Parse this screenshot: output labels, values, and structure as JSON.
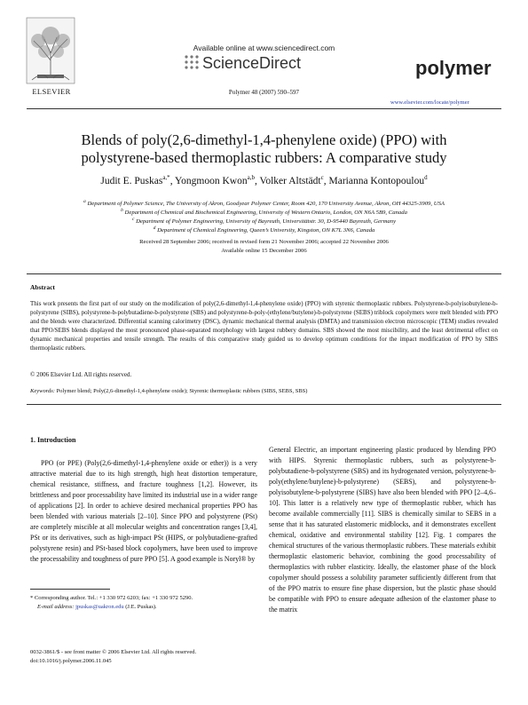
{
  "header": {
    "publisher_logo_text": "ELSEVIER",
    "available_online": "Available online at www.sciencedirect.com",
    "sciencedirect_brand": "ScienceDirect",
    "journal_ref": "Polymer 48 (2007) 590–597",
    "journal_name": "polymer",
    "journal_url": "www.elsevier.com/locate/polymer"
  },
  "article": {
    "title_line1": "Blends of poly(2,6-dimethyl-1,4-phenylene oxide) (PPO) with",
    "title_line2": "polystyrene-based thermoplastic rubbers: A comparative study",
    "authors": [
      {
        "name": "Judit E. Puskas",
        "sup": "a,*"
      },
      {
        "name": "Yongmoon Kwon",
        "sup": "a,b"
      },
      {
        "name": "Volker Altstädt",
        "sup": "c"
      },
      {
        "name": "Marianna Kontopoulou",
        "sup": "d"
      }
    ],
    "affiliations": [
      {
        "sup": "a",
        "text": "Department of Polymer Science, The University of Akron, Goodyear Polymer Center, Room 420, 170 University Avenue, Akron, OH 44325-3909, USA"
      },
      {
        "sup": "b",
        "text": "Department of Chemical and Biochemical Engineering, University of Western Ontario, London, ON N6A 5B9, Canada"
      },
      {
        "sup": "c",
        "text": "Department of Polymer Engineering, University of Bayreuth, Universitätstr. 30, D-95440 Bayreuth, Germany"
      },
      {
        "sup": "d",
        "text": "Department of Chemical Engineering, Queen’s University, Kingston, ON K7L 3N6, Canada"
      }
    ],
    "received": "Received 28 September 2006; received in revised form 21 November 2006; accepted 22 November 2006",
    "available": "Available online 15 December 2006"
  },
  "abstract": {
    "heading": "Abstract",
    "body": "This work presents the first part of our study on the modification of poly(2,6-dimethyl-1,4-phenylene oxide) (PPO) with styrenic thermoplastic rubbers. Polystyrene-b-polyisobutylene-b-polystyrene (SIBS), polystyrene-b-polybutadiene-b-polystyrene (SBS) and polystyrene-b-poly-(ethylene/butylene)-b-polystyrene (SEBS) triblock copolymers were melt blended with PPO and the blends were characterized. Differential scanning calorimetry (DSC), dynamic mechanical thermal analysis (DMTA) and transmission electron microscopic (TEM) studies revealed that PPO/SEBS blends displayed the most pronounced phase-separated morphology with largest rubbery domains. SBS showed the most miscibility, and the least detrimental effect on dynamic mechanical properties and tensile strength. The results of this comparative study guided us to develop optimum conditions for the impact modification of PPO by SIBS thermoplastic rubbers.",
    "copyright": "© 2006 Elsevier Ltd. All rights reserved.",
    "keywords_label": "Keywords:",
    "keywords": "Polymer blend; Poly(2,6-dimethyl-1,4-phenylene oxide); Styrenic thermoplastic rubbers (SIBS, SEBS, SBS)"
  },
  "intro": {
    "heading": "1. Introduction",
    "left_p1": "PPO (or PPE) (Poly(2,6-dimethyl-1,4-phenylene oxide or ether)) is a very attractive material due to its high strength, high heat distortion temperature, chemical resistance, stiffness, and fracture toughness [1,2]. However, its brittleness and poor processability have limited its industrial use in a wider range of applications [2]. In order to achieve desired mechanical properties PPO has been blended with various materials [2–10]. Since PPO and polystyrene (PSt) are completely miscible at all molecular weights and concentration ranges [3,4], PSt or its derivatives, such as high-impact PSt (HIPS, or polybutadiene-grafted polystyrene resin) and PSt-based block copolymers, have been used to improve the processability and toughness of pure PPO [5]. A good example is Noryl® by",
    "right_p1": "General Electric, an important engineering plastic produced by blending PPO with HIPS. Styrenic thermoplastic rubbers, such as polystyrene-b-polybutadiene-b-polystyrene (SBS) and its hydrogenated version, polystyrene-b-poly(ethylene/butylene)-b-polystyrene) (SEBS), and polystyrene-b-polyisobutylene-b-polystyrene (SIBS) have also been blended with PPO [2–4,6–10]. This latter is a relatively new type of thermoplastic rubber, which has become available commercially [11]. SIBS is chemically similar to SEBS in a sense that it has saturated elastomeric midblocks, and it demonstrates excellent chemical, oxidative and environmental stability [12]. Fig. 1 compares the chemical structures of the various thermoplastic rubbers. These materials exhibit thermoplastic elastomeric behavior, combining the good processability of thermoplastics with rubber elasticity. Ideally, the elastomer phase of the block copolymer should possess a solubility parameter sufficiently different from that of the PPO matrix to ensure fine phase dispersion, but the plastic phase should be compatible with PPO to ensure adequate adhesion of the elastomer phase to the matrix"
  },
  "footnote": {
    "corresponding": "* Corresponding author. Tel.: +1 330 972 6203; fax: +1 330 972 5290.",
    "email_label": "E-mail address:",
    "email": "jpuskas@uakron.edu",
    "email_suffix": "(J.E. Puskas)."
  },
  "footer": {
    "issn": "0032-3861/$ - see front matter © 2006 Elsevier Ltd. All rights reserved.",
    "doi": "doi:10.1016/j.polymer.2006.11.045"
  }
}
